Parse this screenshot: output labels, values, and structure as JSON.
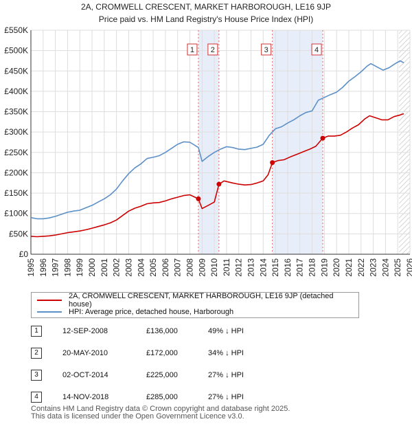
{
  "chart_data": {
    "type": "line",
    "title": "2A, CROMWELL CRESCENT, MARKET HARBOROUGH, LE16 9JP",
    "subtitle": "Price paid vs. HM Land Registry's House Price Index (HPI)",
    "xlim": [
      1995,
      2026
    ],
    "ylim": [
      0,
      550000
    ],
    "x_ticks": [
      "1995",
      "1996",
      "1997",
      "1998",
      "1999",
      "2000",
      "2001",
      "2002",
      "2003",
      "2004",
      "2005",
      "2006",
      "2007",
      "2008",
      "2009",
      "2010",
      "2011",
      "2012",
      "2013",
      "2014",
      "2015",
      "2016",
      "2017",
      "2018",
      "2019",
      "2020",
      "2021",
      "2022",
      "2023",
      "2024",
      "2025",
      "2026"
    ],
    "y_ticks": [
      {
        "value": 0,
        "label": "£0"
      },
      {
        "value": 50000,
        "label": "£50K"
      },
      {
        "value": 100000,
        "label": "£100K"
      },
      {
        "value": 150000,
        "label": "£150K"
      },
      {
        "value": 200000,
        "label": "£200K"
      },
      {
        "value": 250000,
        "label": "£250K"
      },
      {
        "value": 300000,
        "label": "£300K"
      },
      {
        "value": 350000,
        "label": "£350K"
      },
      {
        "value": 400000,
        "label": "£400K"
      },
      {
        "value": 450000,
        "label": "£450K"
      },
      {
        "value": 500000,
        "label": "£500K"
      },
      {
        "value": 550000,
        "label": "£550K"
      }
    ],
    "series": [
      {
        "name": "2A, CROMWELL CRESCENT, MARKET HARBOROUGH, LE16 9JP (detached house)",
        "color": "#cc0000",
        "points": [
          [
            1995.0,
            44000
          ],
          [
            1995.5,
            43000
          ],
          [
            1996.0,
            44000
          ],
          [
            1996.5,
            45000
          ],
          [
            1997.0,
            47000
          ],
          [
            1997.5,
            50000
          ],
          [
            1998.0,
            53000
          ],
          [
            1998.5,
            55000
          ],
          [
            1999.0,
            57000
          ],
          [
            1999.5,
            60000
          ],
          [
            2000.0,
            64000
          ],
          [
            2000.5,
            68000
          ],
          [
            2001.0,
            72000
          ],
          [
            2001.5,
            77000
          ],
          [
            2002.0,
            84000
          ],
          [
            2002.5,
            95000
          ],
          [
            2003.0,
            106000
          ],
          [
            2003.5,
            113000
          ],
          [
            2004.0,
            118000
          ],
          [
            2004.5,
            124000
          ],
          [
            2005.0,
            126000
          ],
          [
            2005.5,
            127000
          ],
          [
            2006.0,
            131000
          ],
          [
            2006.5,
            136000
          ],
          [
            2007.0,
            140000
          ],
          [
            2007.5,
            144000
          ],
          [
            2008.0,
            146000
          ],
          [
            2008.7,
            136000
          ],
          [
            2009.0,
            112000
          ],
          [
            2009.5,
            120000
          ],
          [
            2010.0,
            128000
          ],
          [
            2010.38,
            172000
          ],
          [
            2010.8,
            180000
          ],
          [
            2011.5,
            175000
          ],
          [
            2012.0,
            172000
          ],
          [
            2012.5,
            170000
          ],
          [
            2013.0,
            171000
          ],
          [
            2013.5,
            175000
          ],
          [
            2014.0,
            180000
          ],
          [
            2014.4,
            195000
          ],
          [
            2014.75,
            225000
          ],
          [
            2015.2,
            230000
          ],
          [
            2015.7,
            232000
          ],
          [
            2016.3,
            240000
          ],
          [
            2016.8,
            246000
          ],
          [
            2017.3,
            252000
          ],
          [
            2017.8,
            258000
          ],
          [
            2018.3,
            265000
          ],
          [
            2018.87,
            285000
          ],
          [
            2019.3,
            290000
          ],
          [
            2019.8,
            290000
          ],
          [
            2020.3,
            292000
          ],
          [
            2020.8,
            300000
          ],
          [
            2021.3,
            310000
          ],
          [
            2021.8,
            318000
          ],
          [
            2022.3,
            332000
          ],
          [
            2022.7,
            340000
          ],
          [
            2023.2,
            335000
          ],
          [
            2023.7,
            330000
          ],
          [
            2024.2,
            330000
          ],
          [
            2024.7,
            338000
          ],
          [
            2025.2,
            342000
          ],
          [
            2025.5,
            345000
          ]
        ]
      },
      {
        "name": "HPI: Average price, detached house, Harborough",
        "color": "#5b8fc7",
        "points": [
          [
            1995.0,
            90000
          ],
          [
            1995.5,
            87000
          ],
          [
            1996.0,
            87000
          ],
          [
            1996.5,
            89000
          ],
          [
            1997.0,
            93000
          ],
          [
            1997.5,
            98000
          ],
          [
            1998.0,
            103000
          ],
          [
            1998.5,
            106000
          ],
          [
            1999.0,
            108000
          ],
          [
            1999.5,
            114000
          ],
          [
            2000.0,
            120000
          ],
          [
            2000.5,
            128000
          ],
          [
            2001.0,
            136000
          ],
          [
            2001.5,
            146000
          ],
          [
            2002.0,
            160000
          ],
          [
            2002.5,
            180000
          ],
          [
            2003.0,
            198000
          ],
          [
            2003.5,
            212000
          ],
          [
            2004.0,
            222000
          ],
          [
            2004.5,
            235000
          ],
          [
            2005.0,
            238000
          ],
          [
            2005.5,
            242000
          ],
          [
            2006.0,
            250000
          ],
          [
            2006.5,
            260000
          ],
          [
            2007.0,
            270000
          ],
          [
            2007.5,
            276000
          ],
          [
            2008.0,
            275000
          ],
          [
            2008.7,
            262000
          ],
          [
            2009.0,
            228000
          ],
          [
            2009.5,
            240000
          ],
          [
            2010.0,
            250000
          ],
          [
            2010.5,
            258000
          ],
          [
            2011.0,
            264000
          ],
          [
            2011.5,
            262000
          ],
          [
            2012.0,
            258000
          ],
          [
            2012.5,
            257000
          ],
          [
            2013.0,
            260000
          ],
          [
            2013.5,
            263000
          ],
          [
            2014.0,
            270000
          ],
          [
            2014.5,
            292000
          ],
          [
            2015.0,
            308000
          ],
          [
            2015.5,
            313000
          ],
          [
            2016.0,
            322000
          ],
          [
            2016.5,
            330000
          ],
          [
            2017.0,
            340000
          ],
          [
            2017.5,
            348000
          ],
          [
            2018.0,
            352000
          ],
          [
            2018.5,
            378000
          ],
          [
            2019.0,
            385000
          ],
          [
            2019.5,
            392000
          ],
          [
            2020.0,
            398000
          ],
          [
            2020.5,
            410000
          ],
          [
            2021.0,
            425000
          ],
          [
            2021.5,
            436000
          ],
          [
            2022.0,
            448000
          ],
          [
            2022.5,
            462000
          ],
          [
            2022.8,
            468000
          ],
          [
            2023.3,
            460000
          ],
          [
            2023.8,
            452000
          ],
          [
            2024.3,
            458000
          ],
          [
            2024.8,
            468000
          ],
          [
            2025.2,
            475000
          ],
          [
            2025.5,
            470000
          ]
        ]
      }
    ],
    "shaded_regions": [
      [
        2008.7,
        2010.38
      ],
      [
        2014.75,
        2018.87
      ]
    ],
    "hatched_region": [
      2025.1,
      2026
    ],
    "transactions": [
      {
        "num": "1",
        "x": 2008.7,
        "price": 136000,
        "date": "12-SEP-2008",
        "price_label": "£136,000",
        "hpi": "49% ↓ HPI"
      },
      {
        "num": "2",
        "x": 2010.38,
        "price": 172000,
        "date": "20-MAY-2010",
        "price_label": "£172,000",
        "hpi": "34% ↓ HPI"
      },
      {
        "num": "3",
        "x": 2014.75,
        "price": 225000,
        "date": "02-OCT-2014",
        "price_label": "£225,000",
        "hpi": "27% ↓ HPI"
      },
      {
        "num": "4",
        "x": 2018.87,
        "price": 285000,
        "date": "14-NOV-2018",
        "price_label": "£285,000",
        "hpi": "27% ↓ HPI"
      }
    ]
  },
  "legend": {
    "property_label": "2A, CROMWELL CRESCENT, MARKET HARBOROUGH, LE16 9JP (detached house)",
    "hpi_label": "HPI: Average price, detached house, Harborough"
  },
  "table": [
    {
      "num": "1",
      "date": "12-SEP-2008",
      "price": "£136,000",
      "hpi": "49% ↓ HPI"
    },
    {
      "num": "2",
      "date": "20-MAY-2010",
      "price": "£172,000",
      "hpi": "34% ↓ HPI"
    },
    {
      "num": "3",
      "date": "02-OCT-2014",
      "price": "£225,000",
      "hpi": "27% ↓ HPI"
    },
    {
      "num": "4",
      "date": "14-NOV-2018",
      "price": "£285,000",
      "hpi": "27% ↓ HPI"
    }
  ],
  "footer": {
    "line1": "Contains HM Land Registry data © Crown copyright and database right 2025.",
    "line2": "This data is licensed under the Open Government Licence v3.0."
  }
}
